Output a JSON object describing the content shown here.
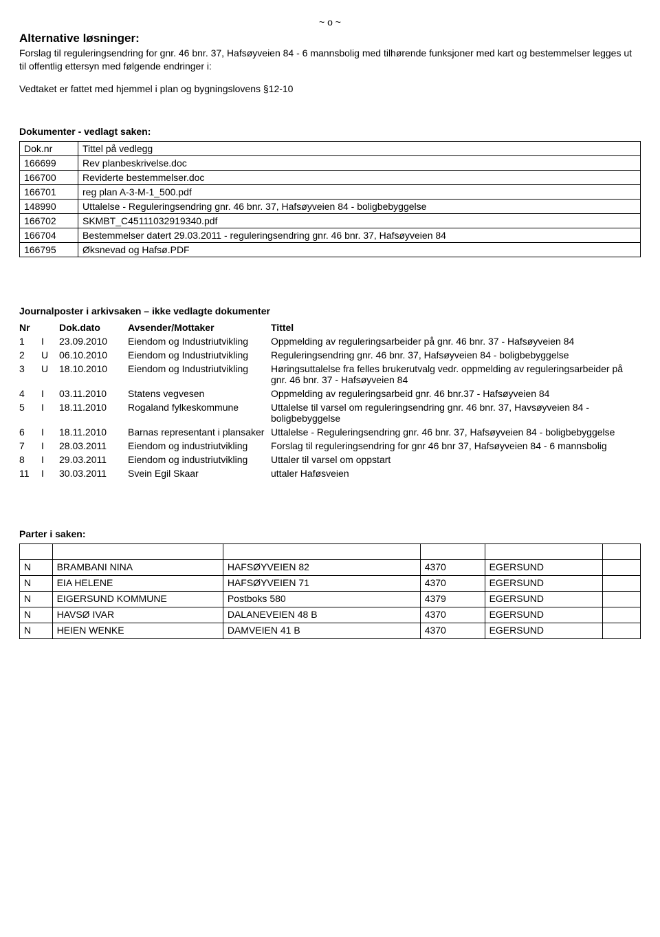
{
  "header_marker": "~ o ~",
  "alt_title": "Alternative løsninger:",
  "alt_line1": "Forslag til reguleringsendring for gnr. 46 bnr. 37, Hafsøyveien 84 - 6 mannsbolig med tilhørende funksjoner med kart og bestemmelser legges ut til offentlig ettersyn med følgende endringer i:",
  "alt_line2": "Vedtaket er fattet med hjemmel i plan og bygningslovens §12-10",
  "docs_title": "Dokumenter - vedlagt saken:",
  "docs_header_nr": "Dok.nr",
  "docs_header_title": "Tittel på vedlegg",
  "docs": [
    {
      "nr": "166699",
      "title": "Rev planbeskrivelse.doc"
    },
    {
      "nr": "166700",
      "title": "Reviderte bestemmelser.doc"
    },
    {
      "nr": "166701",
      "title": "reg plan A-3-M-1_500.pdf"
    },
    {
      "nr": "148990",
      "title": "Uttalelse - Reguleringsendring gnr. 46 bnr. 37, Hafsøyveien 84 - boligbebyggelse"
    },
    {
      "nr": "166702",
      "title": "SKMBT_C45111032919340.pdf"
    },
    {
      "nr": "166704",
      "title": "Bestemmelser datert 29.03.2011 - reguleringsendring gnr. 46 bnr. 37, Hafsøyveien 84"
    },
    {
      "nr": "166795",
      "title": "Øksnevad og Hafsø.PDF"
    }
  ],
  "journal_title": "Journalposter i arkivsaken – ikke vedlagte dokumenter",
  "journal_header": {
    "nr": "Nr",
    "io": "",
    "date": "Dok.dato",
    "from": "Avsender/Mottaker",
    "title": "Tittel"
  },
  "journal": [
    {
      "nr": "1",
      "io": "I",
      "date": "23.09.2010",
      "from": "Eiendom og Industriutvikling",
      "title": "Oppmelding av reguleringsarbeider på gnr. 46 bnr. 37 - Hafsøyveien 84"
    },
    {
      "nr": "2",
      "io": "U",
      "date": "06.10.2010",
      "from": "Eiendom og Industriutvikling",
      "title": "Reguleringsendring gnr. 46 bnr. 37, Hafsøyveien 84 - boligbebyggelse"
    },
    {
      "nr": "3",
      "io": "U",
      "date": "18.10.2010",
      "from": "Eiendom og Industriutvikling",
      "title": "Høringsuttalelse fra felles brukerutvalg vedr. oppmelding av reguleringsarbeider på gnr. 46 bnr. 37 - Hafsøyveien 84"
    },
    {
      "nr": "4",
      "io": "I",
      "date": "03.11.2010",
      "from": "Statens vegvesen",
      "title": "Oppmelding av reguleringsarbeid gnr. 46 bnr.37 - Hafsøyveien 84"
    },
    {
      "nr": "5",
      "io": "I",
      "date": "18.11.2010",
      "from": "Rogaland fylkeskommune",
      "title": "Uttalelse til varsel om reguleringsendring gnr. 46 bnr. 37, Havsøyveien 84 - boligbebyggelse"
    },
    {
      "nr": "6",
      "io": "I",
      "date": "18.11.2010",
      "from": "Barnas representant i plansaker",
      "title": "Uttalelse - Reguleringsendring gnr. 46 bnr. 37, Hafsøyveien 84 - boligbebyggelse"
    },
    {
      "nr": "7",
      "io": "I",
      "date": "28.03.2011",
      "from": "Eiendom og industriutvikling",
      "title": "Forslag til reguleringsendring for gnr 46 bnr 37, Hafsøyveien 84 - 6 mannsbolig"
    },
    {
      "nr": "8",
      "io": "I",
      "date": "29.03.2011",
      "from": "Eiendom og industriutvikling",
      "title": "Uttaler til varsel om oppstart"
    },
    {
      "nr": "11",
      "io": "I",
      "date": "30.03.2011",
      "from": "Svein Egil Skaar",
      "title": "uttaler Haføsveien"
    }
  ],
  "parties_title": "Parter i saken:",
  "parties": [
    {
      "a": "N",
      "b": "BRAMBANI NINA",
      "c": "HAFSØYVEIEN 82",
      "d": "4370",
      "e": "EGERSUND",
      "f": ""
    },
    {
      "a": "N",
      "b": "EIA HELENE",
      "c": "HAFSØYVEIEN 71",
      "d": "4370",
      "e": "EGERSUND",
      "f": ""
    },
    {
      "a": "N",
      "b": "EIGERSUND KOMMUNE",
      "c": "Postboks 580",
      "d": "4379",
      "e": "EGERSUND",
      "f": ""
    },
    {
      "a": "N",
      "b": "HAVSØ IVAR",
      "c": "DALANEVEIEN 48 B",
      "d": "4370",
      "e": "EGERSUND",
      "f": ""
    },
    {
      "a": "N",
      "b": "HEIEN WENKE",
      "c": "DAMVEIEN 41 B",
      "d": "4370",
      "e": "EGERSUND",
      "f": ""
    }
  ]
}
